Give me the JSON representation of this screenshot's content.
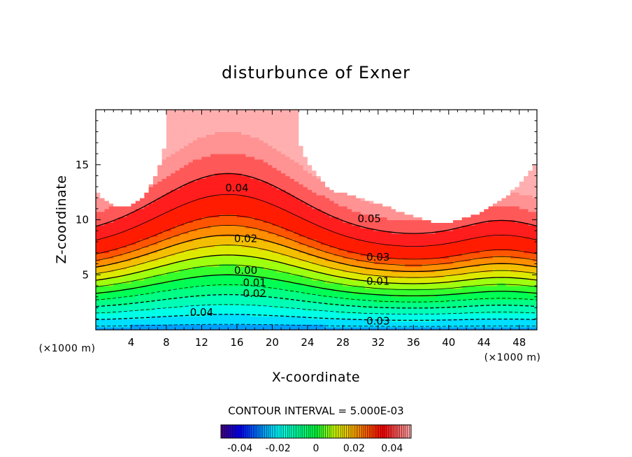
{
  "chart_data": {
    "type": "contour",
    "title": "disturbunce of Exner",
    "xlabel": "X-coordinate",
    "ylabel": "Z-coordinate",
    "x_unit": "(×1000 m)",
    "z_unit": "(×1000 m)",
    "xlim": [
      0,
      50
    ],
    "ylim": [
      0,
      20
    ],
    "x_ticks": [
      "4",
      "8",
      "12",
      "16",
      "20",
      "24",
      "28",
      "32",
      "36",
      "40",
      "44",
      "48"
    ],
    "y_ticks": [
      "5",
      "10",
      "15"
    ],
    "contour_interval_text": "CONTOUR INTERVAL = 5.000E-03",
    "contour_interval": 0.005,
    "contour_labels": [
      {
        "text": "0.04",
        "x": 16,
        "z": 12.9
      },
      {
        "text": "0.05",
        "x": 31,
        "z": 10.1
      },
      {
        "text": "0.02",
        "x": 17,
        "z": 8.3
      },
      {
        "text": "0.03",
        "x": 32,
        "z": 6.6
      },
      {
        "text": "0.00",
        "x": 17,
        "z": 5.4
      },
      {
        "text": "0.01",
        "x": 32,
        "z": 4.4
      },
      {
        "text": "0.01",
        "x": 18,
        "z": 4.3
      },
      {
        "text": "0.02",
        "x": 18,
        "z": 3.3
      },
      {
        "text": "0.04",
        "x": 12,
        "z": 1.6
      },
      {
        "text": "0.03",
        "x": 32,
        "z": 0.8
      }
    ],
    "colorbar": {
      "range": [
        -0.05,
        0.05
      ],
      "tick_labels": [
        "-0.04",
        "-0.02",
        "0",
        "0.02",
        "0.04"
      ],
      "tick_values": [
        -0.04,
        -0.02,
        0,
        0.02,
        0.04
      ]
    },
    "colors": {
      "low": "#5a0090",
      "blue": "#0000ff",
      "cyan": "#00ffff",
      "green": "#00ff00",
      "yellow": "#ffff00",
      "red": "#ff0000",
      "high": "#ffb0b0"
    }
  }
}
